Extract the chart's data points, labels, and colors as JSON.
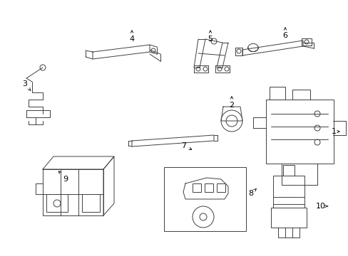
{
  "background_color": "#ffffff",
  "line_color": "#404040",
  "label_color": "#000000",
  "fig_width": 4.89,
  "fig_height": 3.6,
  "dpi": 100,
  "label_fontsize": 8,
  "arrow_lw": 0.6,
  "comp_lw": 0.7
}
